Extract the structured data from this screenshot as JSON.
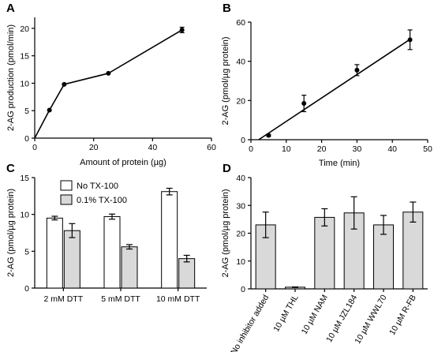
{
  "chart_data": [
    {
      "panel": "A",
      "type": "line",
      "xlabel": "Amount of protein (µg)",
      "ylabel": "2-AG production (pmol/min)",
      "xlim": [
        0,
        60
      ],
      "ylim": [
        0,
        22
      ],
      "xticks": [
        0,
        20,
        40,
        60
      ],
      "yticks": [
        0,
        5,
        10,
        15,
        20
      ],
      "grid": false,
      "points": [
        {
          "x": 0,
          "y": 0
        },
        {
          "x": 5,
          "y": 5.1
        },
        {
          "x": 10,
          "y": 9.8
        },
        {
          "x": 25,
          "y": 11.8
        },
        {
          "x": 50,
          "y": 19.7,
          "err": 0.5
        }
      ]
    },
    {
      "panel": "B",
      "type": "scatter",
      "xlabel": "Time (min)",
      "ylabel": "2-AG (pmol/µg protein)",
      "xlim": [
        0,
        50
      ],
      "ylim": [
        0,
        60
      ],
      "xticks": [
        0,
        10,
        20,
        30,
        40,
        50
      ],
      "yticks": [
        0,
        20,
        40,
        60
      ],
      "grid": false,
      "points": [
        {
          "x": 5,
          "y": 2.2,
          "err": 0.5
        },
        {
          "x": 15,
          "y": 18.5,
          "err": 4.2
        },
        {
          "x": 30,
          "y": 35.5,
          "err": 2.8
        },
        {
          "x": 45,
          "y": 51,
          "err": 5
        }
      ],
      "fit_line": {
        "x": [
          2.2,
          45
        ],
        "y": [
          0,
          51.2
        ]
      }
    },
    {
      "panel": "C",
      "type": "bar",
      "ylabel": "2-AG (pmol/µg protein)",
      "ylim": [
        0,
        15
      ],
      "yticks": [
        0,
        5,
        10,
        15
      ],
      "grid": false,
      "legend_position": "top-left",
      "categories": [
        "2 mM DTT",
        "5 mM DTT",
        "10 mM DTT"
      ],
      "series": [
        {
          "name": "No TX-100",
          "color": "#ffffff",
          "values": [
            9.5,
            9.7,
            13.1
          ],
          "errors": [
            0.25,
            0.35,
            0.45
          ]
        },
        {
          "name": "0.1% TX-100",
          "color": "#d9d9d9",
          "values": [
            7.8,
            5.6,
            4.0
          ],
          "errors": [
            0.95,
            0.3,
            0.45
          ]
        }
      ]
    },
    {
      "panel": "D",
      "type": "bar",
      "ylabel": "2-AG (pmol/µg protein)",
      "ylim": [
        0,
        40
      ],
      "yticks": [
        0,
        10,
        20,
        30,
        40
      ],
      "grid": false,
      "categories": [
        "No inhibitor added",
        "10 µM THL",
        "10 µM NAM",
        "10 µM JZL184",
        "10 µM WWL70",
        "10 µM R-FB"
      ],
      "values": [
        23,
        0.6,
        25.7,
        27.3,
        23,
        27.6
      ],
      "errors": [
        4.6,
        0.1,
        3.1,
        5.8,
        3.4,
        3.6
      ],
      "bar_color": "#d9d9d9"
    }
  ]
}
